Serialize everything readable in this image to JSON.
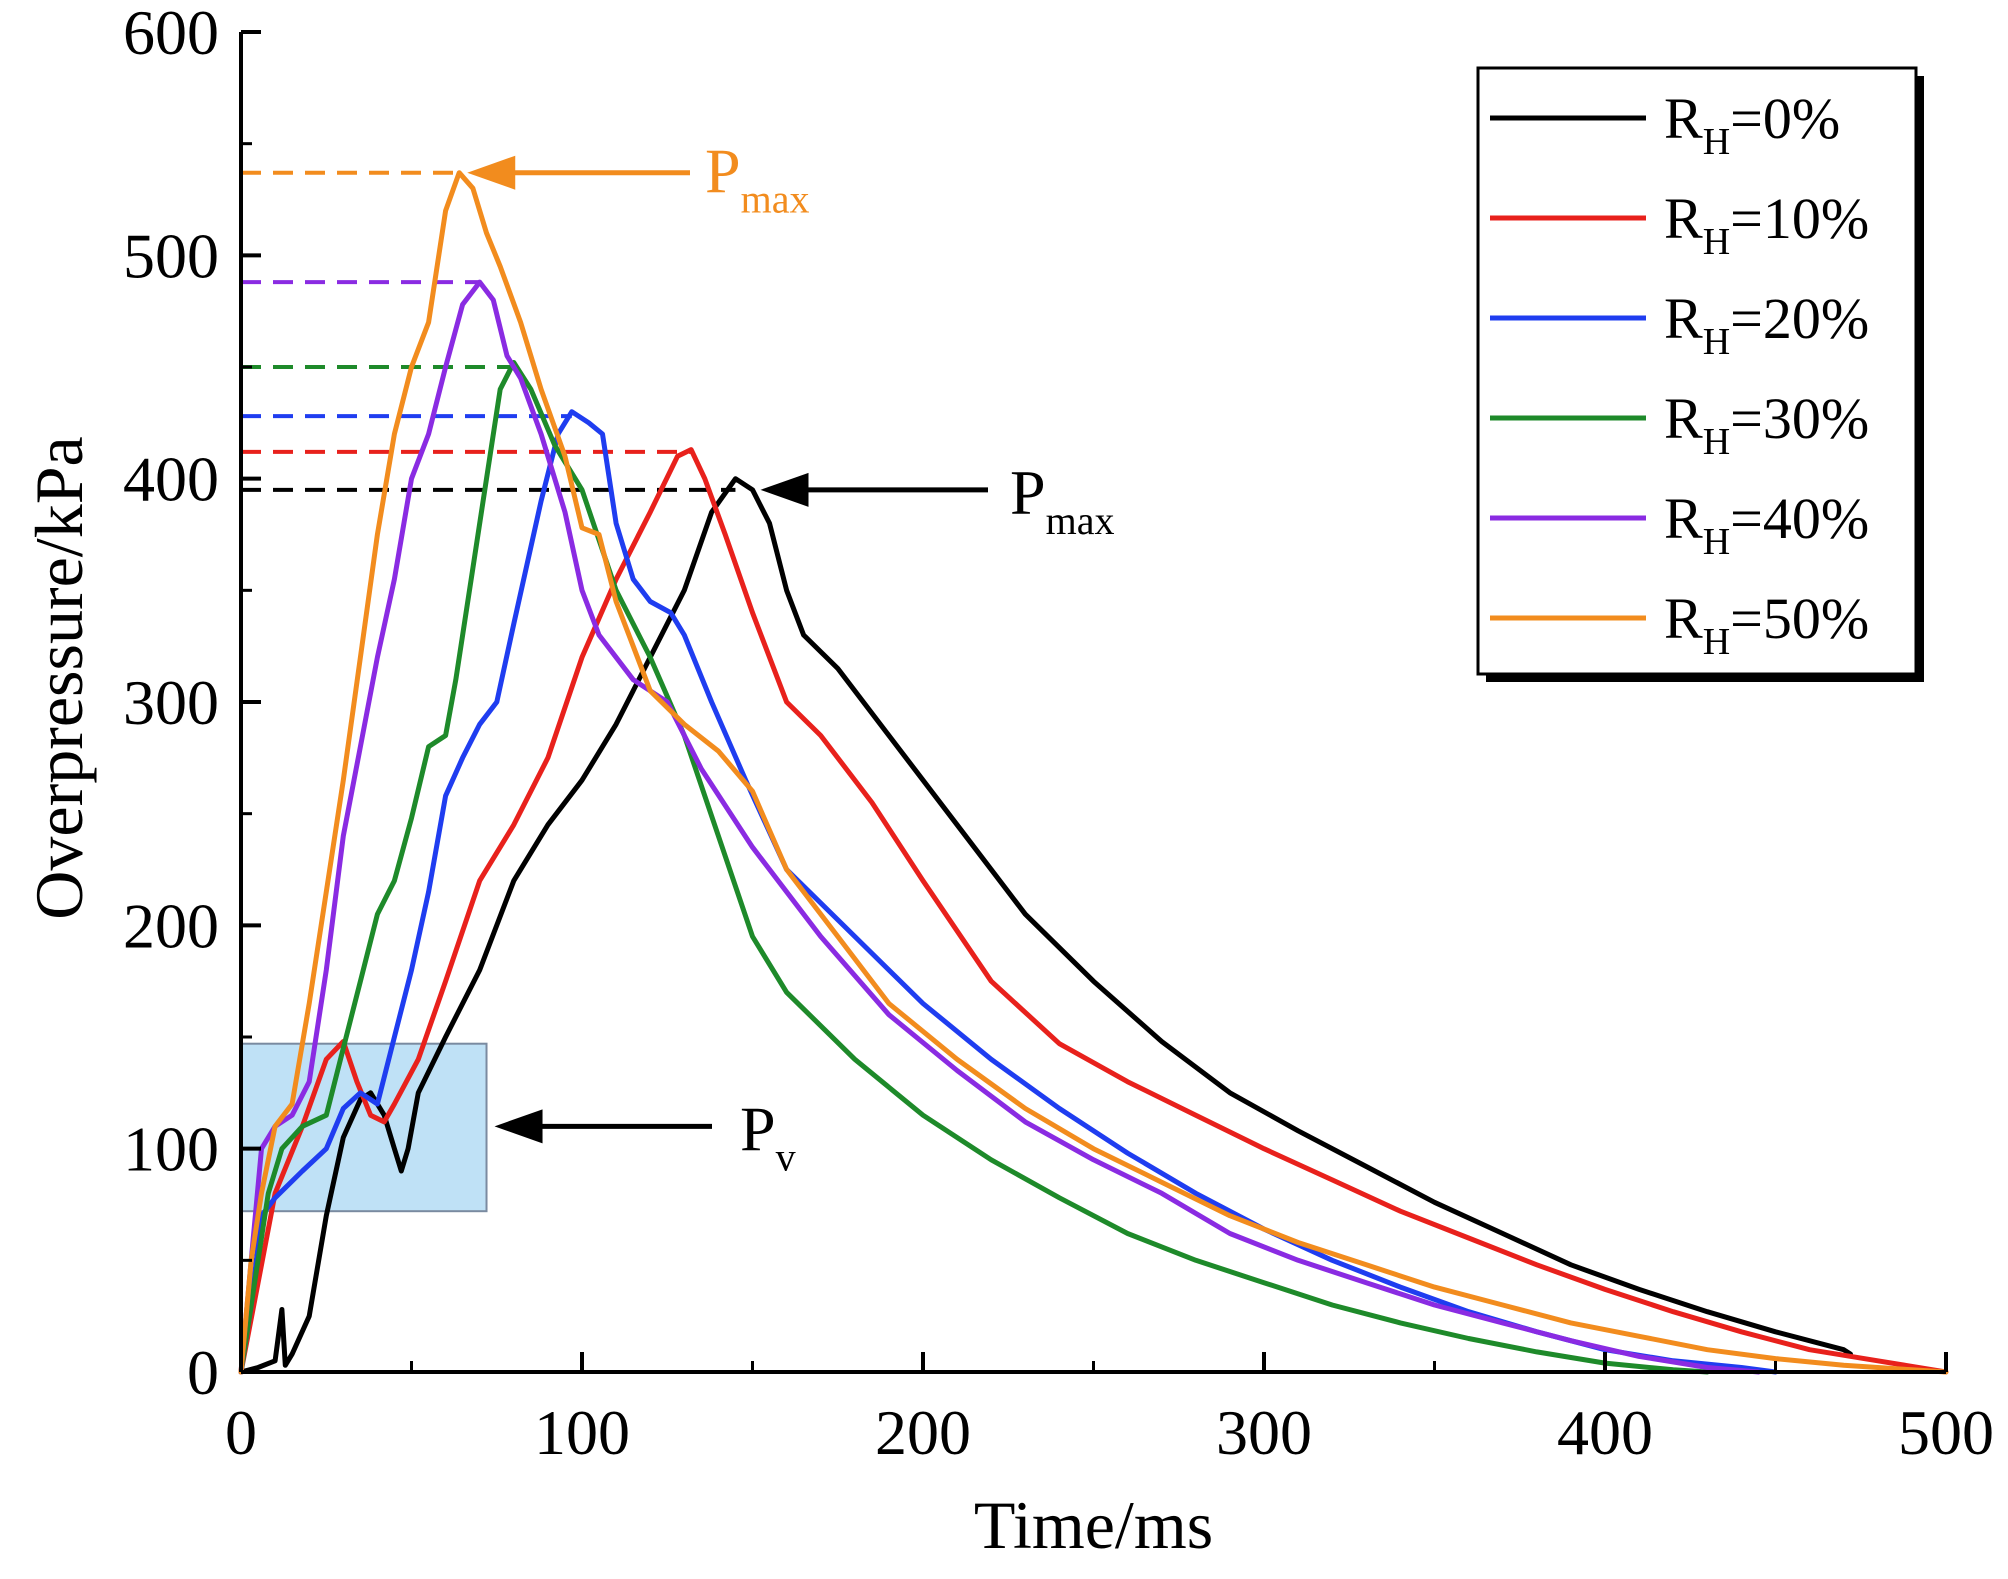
{
  "chart_data": {
    "type": "line",
    "xlabel": "Time/ms",
    "ylabel": "Overpressure/kPa",
    "xlim": [
      0,
      500
    ],
    "ylim": [
      0,
      600
    ],
    "xticks": [
      "0",
      "100",
      "200",
      "300",
      "400",
      "500"
    ],
    "yticks": [
      "0",
      "100",
      "200",
      "300",
      "400",
      "500",
      "600"
    ],
    "grid": false,
    "legend_position": "top-right",
    "series": [
      {
        "name": "R",
        "sub": "H",
        "suffix": "=0%",
        "color": "#000000",
        "peak": 395,
        "points": [
          [
            0,
            0
          ],
          [
            5,
            2
          ],
          [
            10,
            5
          ],
          [
            12,
            28
          ],
          [
            13,
            3
          ],
          [
            15,
            8
          ],
          [
            20,
            25
          ],
          [
            25,
            70
          ],
          [
            30,
            105
          ],
          [
            35,
            122
          ],
          [
            38,
            125
          ],
          [
            42,
            115
          ],
          [
            45,
            100
          ],
          [
            47,
            90
          ],
          [
            49,
            100
          ],
          [
            52,
            125
          ],
          [
            60,
            150
          ],
          [
            70,
            180
          ],
          [
            80,
            220
          ],
          [
            90,
            245
          ],
          [
            100,
            265
          ],
          [
            110,
            290
          ],
          [
            120,
            320
          ],
          [
            130,
            350
          ],
          [
            138,
            385
          ],
          [
            145,
            400
          ],
          [
            150,
            395
          ],
          [
            155,
            380
          ],
          [
            160,
            350
          ],
          [
            165,
            330
          ],
          [
            175,
            315
          ],
          [
            190,
            285
          ],
          [
            210,
            245
          ],
          [
            230,
            205
          ],
          [
            250,
            175
          ],
          [
            270,
            148
          ],
          [
            290,
            125
          ],
          [
            310,
            108
          ],
          [
            330,
            92
          ],
          [
            350,
            76
          ],
          [
            370,
            62
          ],
          [
            390,
            48
          ],
          [
            410,
            37
          ],
          [
            430,
            27
          ],
          [
            450,
            18
          ],
          [
            470,
            10
          ],
          [
            472,
            8
          ]
        ]
      },
      {
        "name": "R",
        "sub": "H",
        "suffix": "=10%",
        "color": "#e8211c",
        "peak": 412,
        "points": [
          [
            0,
            0
          ],
          [
            5,
            40
          ],
          [
            10,
            80
          ],
          [
            18,
            110
          ],
          [
            25,
            140
          ],
          [
            30,
            148
          ],
          [
            34,
            130
          ],
          [
            38,
            115
          ],
          [
            42,
            112
          ],
          [
            45,
            120
          ],
          [
            52,
            140
          ],
          [
            60,
            175
          ],
          [
            70,
            220
          ],
          [
            80,
            245
          ],
          [
            90,
            275
          ],
          [
            100,
            320
          ],
          [
            110,
            355
          ],
          [
            120,
            385
          ],
          [
            128,
            410
          ],
          [
            132,
            413
          ],
          [
            136,
            400
          ],
          [
            142,
            375
          ],
          [
            150,
            340
          ],
          [
            160,
            300
          ],
          [
            170,
            285
          ],
          [
            185,
            255
          ],
          [
            200,
            220
          ],
          [
            220,
            175
          ],
          [
            240,
            147
          ],
          [
            260,
            130
          ],
          [
            280,
            115
          ],
          [
            300,
            100
          ],
          [
            320,
            86
          ],
          [
            340,
            72
          ],
          [
            360,
            60
          ],
          [
            380,
            48
          ],
          [
            400,
            37
          ],
          [
            420,
            27
          ],
          [
            440,
            18
          ],
          [
            460,
            10
          ],
          [
            480,
            5
          ],
          [
            500,
            0
          ]
        ]
      },
      {
        "name": "R",
        "sub": "H",
        "suffix": "=20%",
        "color": "#1f3df0",
        "peak": 428,
        "points": [
          [
            0,
            0
          ],
          [
            3,
            30
          ],
          [
            6,
            70
          ],
          [
            10,
            78
          ],
          [
            18,
            90
          ],
          [
            25,
            100
          ],
          [
            30,
            118
          ],
          [
            35,
            125
          ],
          [
            40,
            120
          ],
          [
            45,
            150
          ],
          [
            50,
            180
          ],
          [
            55,
            215
          ],
          [
            60,
            258
          ],
          [
            65,
            275
          ],
          [
            70,
            290
          ],
          [
            75,
            300
          ],
          [
            80,
            335
          ],
          [
            88,
            390
          ],
          [
            93,
            420
          ],
          [
            97,
            430
          ],
          [
            102,
            425
          ],
          [
            106,
            420
          ],
          [
            110,
            380
          ],
          [
            115,
            355
          ],
          [
            120,
            345
          ],
          [
            126,
            340
          ],
          [
            130,
            330
          ],
          [
            138,
            300
          ],
          [
            148,
            265
          ],
          [
            160,
            225
          ],
          [
            180,
            195
          ],
          [
            200,
            165
          ],
          [
            220,
            140
          ],
          [
            240,
            118
          ],
          [
            260,
            98
          ],
          [
            280,
            80
          ],
          [
            300,
            64
          ],
          [
            320,
            50
          ],
          [
            340,
            38
          ],
          [
            360,
            27
          ],
          [
            380,
            18
          ],
          [
            400,
            10
          ],
          [
            420,
            5
          ],
          [
            440,
            2
          ],
          [
            450,
            0
          ]
        ]
      },
      {
        "name": "R",
        "sub": "H",
        "suffix": "=30%",
        "color": "#1e8a2a",
        "peak": 450,
        "points": [
          [
            0,
            0
          ],
          [
            4,
            40
          ],
          [
            8,
            80
          ],
          [
            12,
            100
          ],
          [
            18,
            110
          ],
          [
            25,
            115
          ],
          [
            30,
            145
          ],
          [
            35,
            175
          ],
          [
            40,
            205
          ],
          [
            45,
            220
          ],
          [
            50,
            248
          ],
          [
            55,
            280
          ],
          [
            60,
            285
          ],
          [
            63,
            310
          ],
          [
            68,
            360
          ],
          [
            72,
            400
          ],
          [
            76,
            440
          ],
          [
            80,
            452
          ],
          [
            85,
            440
          ],
          [
            92,
            415
          ],
          [
            100,
            395
          ],
          [
            110,
            350
          ],
          [
            120,
            320
          ],
          [
            130,
            285
          ],
          [
            140,
            240
          ],
          [
            150,
            195
          ],
          [
            160,
            170
          ],
          [
            180,
            140
          ],
          [
            200,
            115
          ],
          [
            220,
            95
          ],
          [
            240,
            78
          ],
          [
            260,
            62
          ],
          [
            280,
            50
          ],
          [
            300,
            40
          ],
          [
            320,
            30
          ],
          [
            340,
            22
          ],
          [
            360,
            15
          ],
          [
            380,
            9
          ],
          [
            400,
            4
          ],
          [
            420,
            1
          ],
          [
            430,
            0
          ]
        ]
      },
      {
        "name": "R",
        "sub": "H",
        "suffix": "=40%",
        "color": "#8a2be2",
        "peak": 488,
        "points": [
          [
            0,
            0
          ],
          [
            3,
            50
          ],
          [
            6,
            100
          ],
          [
            10,
            110
          ],
          [
            15,
            115
          ],
          [
            20,
            130
          ],
          [
            25,
            180
          ],
          [
            30,
            240
          ],
          [
            35,
            280
          ],
          [
            40,
            320
          ],
          [
            45,
            355
          ],
          [
            50,
            400
          ],
          [
            55,
            420
          ],
          [
            60,
            450
          ],
          [
            65,
            478
          ],
          [
            70,
            488
          ],
          [
            74,
            480
          ],
          [
            78,
            455
          ],
          [
            82,
            445
          ],
          [
            88,
            420
          ],
          [
            95,
            385
          ],
          [
            100,
            350
          ],
          [
            105,
            330
          ],
          [
            110,
            320
          ],
          [
            115,
            310
          ],
          [
            120,
            305
          ],
          [
            125,
            300
          ],
          [
            135,
            270
          ],
          [
            150,
            235
          ],
          [
            170,
            195
          ],
          [
            190,
            160
          ],
          [
            210,
            135
          ],
          [
            230,
            112
          ],
          [
            250,
            95
          ],
          [
            270,
            80
          ],
          [
            290,
            62
          ],
          [
            310,
            50
          ],
          [
            330,
            40
          ],
          [
            350,
            30
          ],
          [
            370,
            22
          ],
          [
            390,
            14
          ],
          [
            410,
            7
          ],
          [
            430,
            2
          ],
          [
            445,
            0
          ]
        ]
      },
      {
        "name": "R",
        "sub": "H",
        "suffix": "=50%",
        "color": "#f28c1e",
        "peak": 537,
        "points": [
          [
            0,
            0
          ],
          [
            3,
            50
          ],
          [
            6,
            80
          ],
          [
            10,
            110
          ],
          [
            15,
            120
          ],
          [
            20,
            165
          ],
          [
            25,
            215
          ],
          [
            30,
            265
          ],
          [
            35,
            320
          ],
          [
            40,
            375
          ],
          [
            45,
            420
          ],
          [
            50,
            450
          ],
          [
            55,
            470
          ],
          [
            60,
            520
          ],
          [
            64,
            537
          ],
          [
            68,
            530
          ],
          [
            72,
            510
          ],
          [
            76,
            495
          ],
          [
            82,
            470
          ],
          [
            88,
            440
          ],
          [
            95,
            410
          ],
          [
            100,
            378
          ],
          [
            105,
            375
          ],
          [
            110,
            345
          ],
          [
            115,
            325
          ],
          [
            120,
            305
          ],
          [
            130,
            290
          ],
          [
            140,
            278
          ],
          [
            150,
            260
          ],
          [
            160,
            225
          ],
          [
            175,
            195
          ],
          [
            190,
            165
          ],
          [
            210,
            140
          ],
          [
            230,
            118
          ],
          [
            250,
            100
          ],
          [
            270,
            85
          ],
          [
            290,
            70
          ],
          [
            310,
            58
          ],
          [
            330,
            48
          ],
          [
            350,
            38
          ],
          [
            370,
            30
          ],
          [
            390,
            22
          ],
          [
            410,
            16
          ],
          [
            430,
            10
          ],
          [
            450,
            6
          ],
          [
            470,
            3
          ],
          [
            490,
            1
          ],
          [
            500,
            0
          ]
        ]
      }
    ],
    "annotations": [
      {
        "main": "P",
        "sub": "max",
        "color": "#f28c1e",
        "target": [
          64,
          537
        ]
      },
      {
        "main": "P",
        "sub": "max",
        "color": "#000000",
        "target": [
          150,
          395
        ]
      },
      {
        "main": "P",
        "sub": "v",
        "color": "#000000",
        "target": [
          72,
          110
        ]
      }
    ],
    "highlight_box": {
      "x0": 0,
      "x1": 72,
      "y0": 72,
      "y1": 147,
      "fill": "#bfe1f6",
      "stroke": "#7a8aa0"
    }
  }
}
